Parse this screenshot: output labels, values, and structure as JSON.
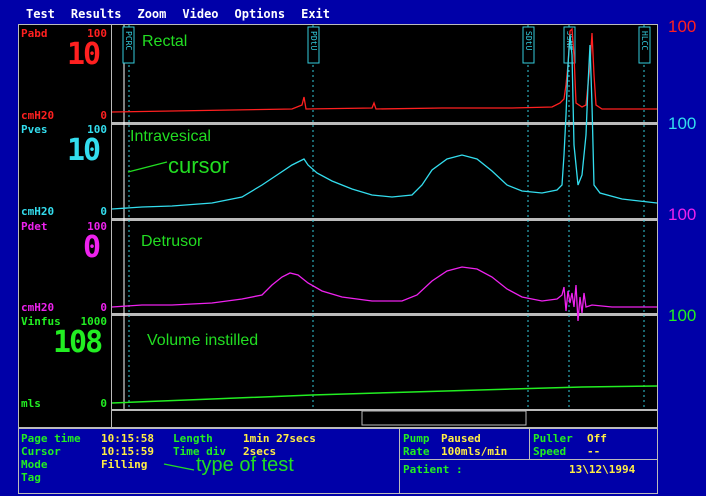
{
  "menu": [
    "Test",
    "Results",
    "Zoom",
    "Video",
    "Options",
    "Exit"
  ],
  "channels": [
    {
      "name": "Pabd",
      "max": "100",
      "value": "10",
      "unit": "cmH20",
      "min": "0",
      "color": "#ff2020",
      "title": "Rectal",
      "scale": "100",
      "scale_color": "#ff2020"
    },
    {
      "name": "Pves",
      "max": "100",
      "value": "10",
      "unit": "cmH20",
      "min": "0",
      "color": "#33ddee",
      "title": "Intravesical",
      "scale": "100",
      "scale_color": "#33ddee"
    },
    {
      "name": "Pdet",
      "max": "100",
      "value": "0",
      "unit": "cmH20",
      "min": "0",
      "color": "#ee22ee",
      "title": "Detrusor",
      "scale": "100",
      "scale_color": "#ee22ee"
    },
    {
      "name": "Vinfus",
      "max": "1000",
      "value": "108",
      "unit": "mls",
      "min": "0",
      "color": "#22ee22",
      "title": "Volume instilled",
      "scale": "100",
      "scale_color": "#22ee22"
    }
  ],
  "annotations": {
    "cursor": "cursor",
    "type_of_test": "type of test"
  },
  "event_markers": [
    "PCRC",
    "PDtU",
    "SDtU",
    "JSNF",
    "HLCC"
  ],
  "status": {
    "page_time_label": "Page time",
    "page_time": "10:15:58",
    "length_label": "Length",
    "length": "1min 27secs",
    "cursor_label": "Cursor",
    "cursor_time": "10:15:59",
    "timediv_label": "Time div",
    "timediv": "2secs",
    "mode_label": "Mode",
    "mode": "Filling",
    "tag_label": "Tag",
    "pump_label": "Pump",
    "pump": "Paused",
    "rate_label": "Rate",
    "rate": "100mls/min",
    "puller_label": "Puller",
    "puller": "Off",
    "speed_label": "Speed",
    "speed": "--",
    "patient_label": "Patient :",
    "date": "13\\12\\1994"
  }
}
